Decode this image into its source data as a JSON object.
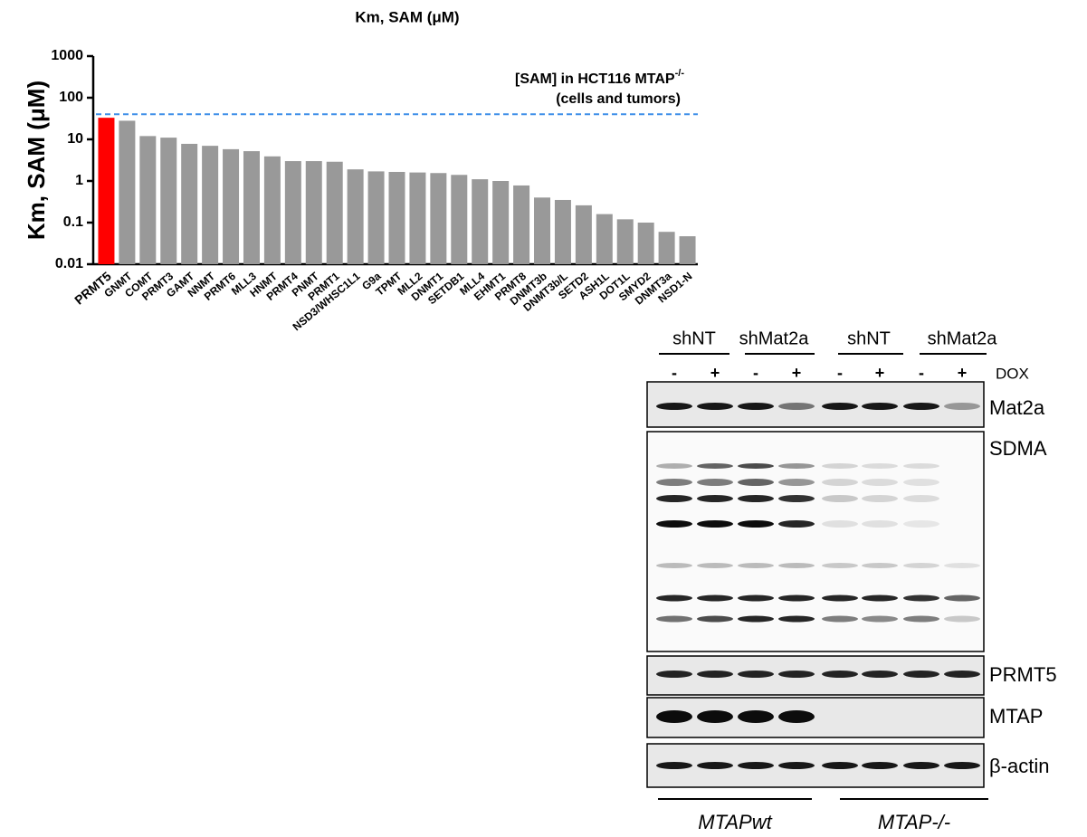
{
  "chart_data": {
    "type": "bar",
    "title": "Km, SAM (μM)",
    "y_label": "Km, SAM (μM)",
    "log_scale": true,
    "categories": [
      "PRMT5",
      "GNMT",
      "COMT",
      "PRMT3",
      "GAMT",
      "NNMT",
      "PRMT6",
      "MLL3",
      "HNMT",
      "PRMT4",
      "PNMT",
      "PRMT1",
      "NSD3/WHSC1L1",
      "G9a",
      "TPMT",
      "MLL2",
      "DNMT1",
      "SETDB1",
      "MLL4",
      "EHMT1",
      "PRMT8",
      "DNMT3b",
      "DNMT3b/L",
      "SETD2",
      "ASH1L",
      "DOT1L",
      "SMYD2",
      "DNMT3a",
      "NSD1-N"
    ],
    "values": [
      33,
      28,
      12,
      11,
      7.8,
      7,
      5.8,
      5.2,
      3.9,
      3,
      3,
      2.9,
      1.9,
      1.7,
      1.65,
      1.6,
      1.55,
      1.4,
      1.1,
      1.0,
      0.78,
      0.4,
      0.35,
      0.26,
      0.16,
      0.12,
      0.1,
      0.06,
      0.047
    ],
    "color": "#999999",
    "highlight": [
      "PRMT5"
    ],
    "highlight_color": "#ff0000",
    "ylim": [
      0.01,
      1000
    ],
    "yticks": [
      0.01,
      0.1,
      1,
      10,
      100,
      1000
    ],
    "reference_line": {
      "value": 40,
      "color": "#3c8ee8",
      "label": "[SAM] in HCT116 MTAP",
      "label_superscript": "-/-",
      "label_line2": "(cells and tumors)"
    }
  },
  "blot": {
    "groups": [
      "shNT",
      "shMat2a",
      "shNT",
      "shMat2a"
    ],
    "dox_signs": [
      "-",
      "+",
      "-",
      "+",
      "-",
      "+",
      "-",
      "+"
    ],
    "dox_label": "DOX",
    "rows": [
      "Mat2a",
      "SDMA",
      "PRMT5",
      "MTAP",
      "β-actin"
    ],
    "genotypes": [
      "MTAPwt",
      "MTAP-/-"
    ]
  }
}
